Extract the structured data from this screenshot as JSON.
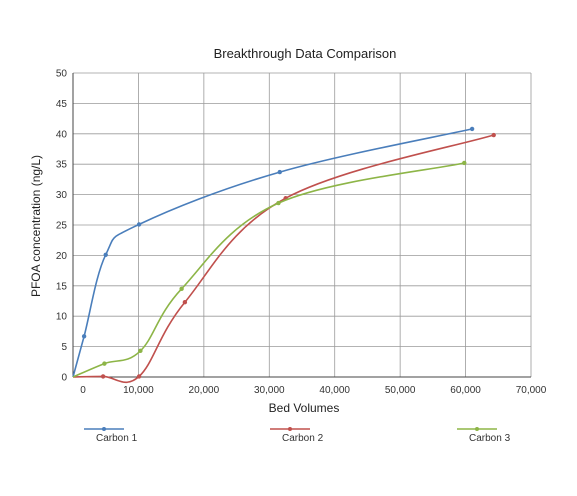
{
  "chart_data": {
    "type": "line",
    "title": "Breakthrough Data Comparison",
    "xlabel": "Bed Volumes",
    "ylabel": "PFOA concentration (ng/L)",
    "xlim": [
      0,
      70000
    ],
    "ylim": [
      0,
      50
    ],
    "x_ticks": [
      0,
      10000,
      20000,
      30000,
      40000,
      50000,
      60000,
      70000
    ],
    "x_tick_labels": [
      "0",
      "10,000",
      "20,000",
      "30,000",
      "40,000",
      "50,000",
      "60,000",
      "70,000"
    ],
    "y_ticks": [
      0,
      5,
      10,
      15,
      20,
      25,
      30,
      35,
      40,
      45,
      50
    ],
    "y_tick_labels": [
      "0",
      "5",
      "10",
      "15",
      "20",
      "25",
      "30",
      "35",
      "40",
      "45",
      "50"
    ],
    "grid": true,
    "legend_position": "bottom",
    "series": [
      {
        "name": "Carbon 1",
        "color": "#4a7ebb",
        "x": [
          0,
          1700,
          5000,
          10100,
          31600,
          61000
        ],
        "y": [
          0,
          6.7,
          20.1,
          25.1,
          33.7,
          40.8
        ]
      },
      {
        "name": "Carbon 2",
        "color": "#c0504d",
        "x": [
          0,
          4600,
          10100,
          17100,
          32500,
          64300
        ],
        "y": [
          0,
          0.1,
          0.1,
          12.3,
          29.4,
          39.8
        ]
      },
      {
        "name": "Carbon 3",
        "color": "#8db547",
        "x": [
          0,
          4800,
          10300,
          16600,
          31400,
          59800
        ],
        "y": [
          0,
          2.2,
          4.3,
          14.5,
          28.6,
          35.2
        ]
      }
    ]
  }
}
